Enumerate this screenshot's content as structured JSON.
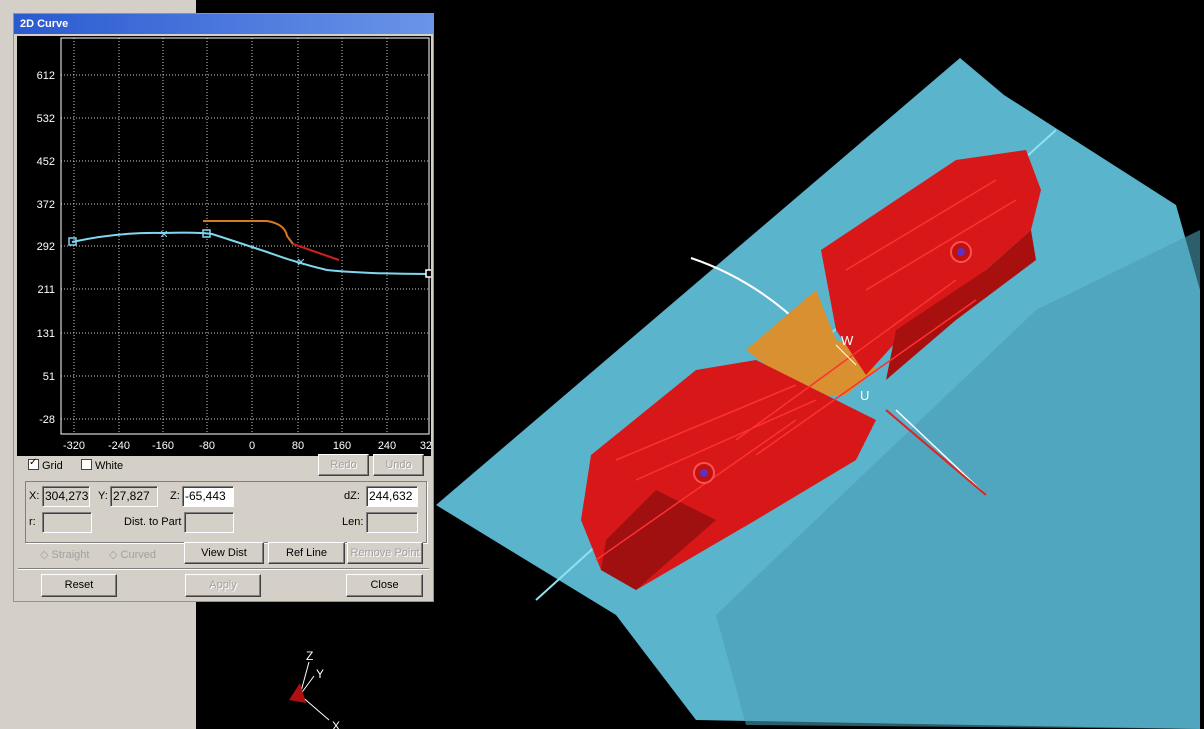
{
  "dialog": {
    "title": "2D Curve",
    "y_ticks": [
      "612",
      "532",
      "452",
      "372",
      "292",
      "211",
      "131",
      "51",
      "-28"
    ],
    "x_ticks": [
      "-320",
      "-240",
      "-160",
      "-80",
      "0",
      "80",
      "160",
      "240",
      "320"
    ],
    "grid_label": "Grid",
    "grid_checked": true,
    "white_label": "White",
    "white_checked": false,
    "redo_label": "Redo",
    "undo_label": "Undo",
    "x_label": "X:",
    "x_value": "304,273",
    "y_label": "Y:",
    "y_value": "27,827",
    "z_label": "Z:",
    "z_value": "-65,443",
    "dz_label": "dZ:",
    "dz_value": "244,632",
    "r_label": "r:",
    "r_value": "",
    "dist_label": "Dist. to Part",
    "dist_value": "",
    "len_label": "Len:",
    "len_value": "",
    "straight_label": "Straight",
    "curved_label": "Curved",
    "view_dist_label": "View Dist",
    "ref_line_label": "Ref Line",
    "remove_point_label": "Remove Point",
    "reset_label": "Reset",
    "apply_label": "Apply",
    "close_label": "Close",
    "curve_color": "#80d8f0",
    "ref_curve_color": "#d87820",
    "red_curve_color": "#d02020"
  },
  "viewport": {
    "axis_z": "Z",
    "axis_y": "Y",
    "axis_x": "X",
    "label_w": "W",
    "label_u": "U",
    "surface_color": "#5ab4cc",
    "part_color": "#d81818",
    "blank_color": "#d89030"
  }
}
